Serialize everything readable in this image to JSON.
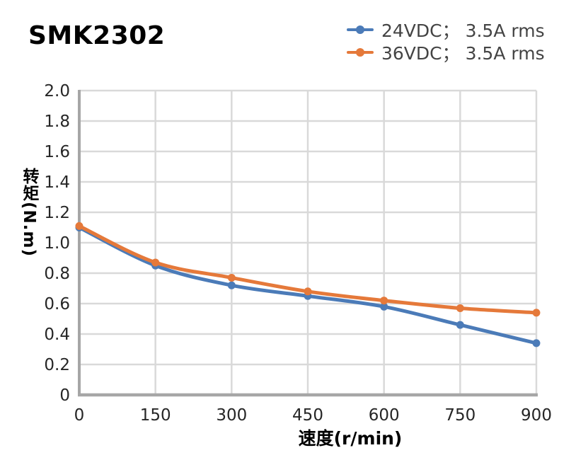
{
  "page": {
    "title": "SMK2302"
  },
  "chart_data": {
    "type": "line",
    "title": "SMK2302",
    "xlabel": "速度(r/min)",
    "ylabel": "转矩(N.m)",
    "x": [
      0,
      150,
      300,
      450,
      600,
      750,
      900
    ],
    "xlim": [
      0,
      900
    ],
    "ylim": [
      0,
      2.0
    ],
    "grid": true,
    "line_style": "smooth",
    "legend_position": "top-right",
    "x_ticks": {
      "values": [
        0,
        150,
        300,
        450,
        600,
        750,
        900
      ],
      "labels": [
        "0",
        "150",
        "300",
        "450",
        "600",
        "750",
        "900"
      ]
    },
    "y_ticks": {
      "values": [
        0,
        0.2,
        0.4,
        0.6,
        0.8,
        1.0,
        1.2,
        1.4,
        1.6,
        1.8,
        2.0
      ],
      "labels": [
        "0",
        "0.2",
        "0.4",
        "0.6",
        "0.8",
        "1.0",
        "1.2",
        "1.4",
        "1.6",
        "1.8",
        "2.0"
      ]
    },
    "series": [
      {
        "name": "24VDC； 3.5A rms",
        "color": "#4B7BB8",
        "values": [
          1.1,
          0.85,
          0.72,
          0.65,
          0.58,
          0.46,
          0.34
        ]
      },
      {
        "name": "36VDC； 3.5A rms",
        "color": "#E5793A",
        "values": [
          1.11,
          0.87,
          0.77,
          0.68,
          0.62,
          0.57,
          0.54
        ]
      }
    ],
    "colors": {
      "axis": "#A6A6A6",
      "grid": "#D9D9D9",
      "tick_text": "#262626",
      "legend_text": "#444444",
      "title_text": "#000000"
    }
  }
}
